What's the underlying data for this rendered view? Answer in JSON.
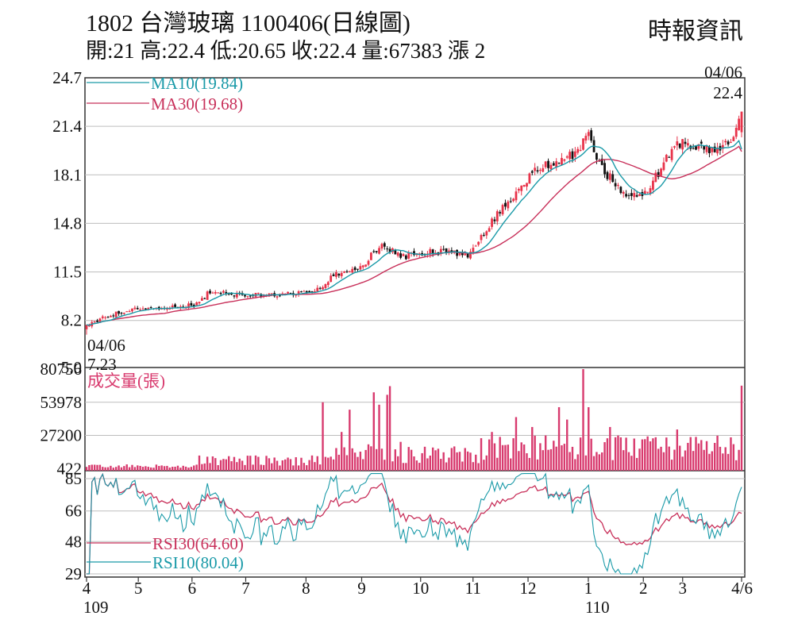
{
  "header": {
    "title": "1802  台灣玻璃 1100406(日線圖)",
    "stats": "開:21 高:22.4 低:20.65 收:22.4 量:67383 漲 2",
    "source": "時報資訊"
  },
  "colors": {
    "up": "#e8334a",
    "down": "#111111",
    "ma10": "#1a9aa8",
    "ma30": "#c8305a",
    "volume": "#d83a6e",
    "rsi10": "#1a9aa8",
    "rsi30": "#c8305a",
    "grid": "#bdbdbd",
    "frame": "#333333"
  },
  "chart_data": [
    {
      "type": "candlestick",
      "name": "price",
      "ylim": [
        5.0,
        24.7
      ],
      "y_ticks": [
        "24.7",
        "21.4",
        "18.1",
        "14.8",
        "11.5",
        "8.2",
        "5.0"
      ],
      "legend": [
        {
          "key": "ma10",
          "label": "MA10(19.84)"
        },
        {
          "key": "ma30",
          "label": "MA30(19.68)"
        }
      ],
      "annotations": {
        "high_date": "04/06",
        "high_value": "22.4",
        "low_date": "04/06",
        "low_value": "7.23"
      },
      "anchors": [
        {
          "t": 0.0,
          "c": 7.9
        },
        {
          "t": 0.03,
          "c": 8.5
        },
        {
          "t": 0.08,
          "c": 9.0
        },
        {
          "t": 0.12,
          "c": 9.0
        },
        {
          "t": 0.165,
          "c": 9.3
        },
        {
          "t": 0.19,
          "c": 10.2
        },
        {
          "t": 0.22,
          "c": 10.0
        },
        {
          "t": 0.28,
          "c": 9.9
        },
        {
          "t": 0.31,
          "c": 10.0
        },
        {
          "t": 0.345,
          "c": 10.1
        },
        {
          "t": 0.38,
          "c": 11.3
        },
        {
          "t": 0.42,
          "c": 11.9
        },
        {
          "t": 0.45,
          "c": 13.4
        },
        {
          "t": 0.48,
          "c": 12.5
        },
        {
          "t": 0.51,
          "c": 12.8
        },
        {
          "t": 0.55,
          "c": 12.9
        },
        {
          "t": 0.585,
          "c": 12.6
        },
        {
          "t": 0.62,
          "c": 15.0
        },
        {
          "t": 0.68,
          "c": 18.2
        },
        {
          "t": 0.72,
          "c": 19.2
        },
        {
          "t": 0.75,
          "c": 19.6
        },
        {
          "t": 0.765,
          "c": 20.9
        },
        {
          "t": 0.785,
          "c": 18.6
        },
        {
          "t": 0.83,
          "c": 16.4
        },
        {
          "t": 0.86,
          "c": 17.3
        },
        {
          "t": 0.9,
          "c": 20.3
        },
        {
          "t": 0.935,
          "c": 20.1
        },
        {
          "t": 0.96,
          "c": 19.6
        },
        {
          "t": 0.985,
          "c": 20.4
        },
        {
          "t": 1.0,
          "c": 22.4
        }
      ],
      "ma10_last": 19.84,
      "ma30_last": 19.68
    },
    {
      "type": "bar",
      "name": "volume",
      "title": "成交量(張)",
      "y_ticks": [
        "80756",
        "53978",
        "27200",
        "422"
      ],
      "ylim": [
        0,
        80756
      ],
      "spikes": [
        {
          "t": 0.36,
          "v": 54000
        },
        {
          "t": 0.39,
          "v": 30000
        },
        {
          "t": 0.4,
          "v": 48000
        },
        {
          "t": 0.43,
          "v": 20000
        },
        {
          "t": 0.44,
          "v": 62000
        },
        {
          "t": 0.445,
          "v": 52000
        },
        {
          "t": 0.46,
          "v": 60000
        },
        {
          "t": 0.464,
          "v": 67000
        },
        {
          "t": 0.48,
          "v": 22000
        },
        {
          "t": 0.62,
          "v": 30000
        },
        {
          "t": 0.655,
          "v": 42000
        },
        {
          "t": 0.68,
          "v": 34000
        },
        {
          "t": 0.72,
          "v": 50000
        },
        {
          "t": 0.735,
          "v": 40000
        },
        {
          "t": 0.76,
          "v": 80756
        },
        {
          "t": 0.765,
          "v": 50000
        },
        {
          "t": 0.8,
          "v": 34000
        },
        {
          "t": 0.85,
          "v": 24000
        },
        {
          "t": 0.9,
          "v": 32000
        },
        {
          "t": 0.93,
          "v": 26000
        },
        {
          "t": 1.0,
          "v": 67383
        }
      ]
    },
    {
      "type": "line",
      "name": "rsi",
      "y_ticks": [
        "85",
        "66",
        "48",
        "29"
      ],
      "ylim": [
        29,
        85
      ],
      "legend": [
        {
          "key": "rsi30",
          "label": "RSI30(64.60)"
        },
        {
          "key": "rsi10",
          "label": "RSI10(80.04)"
        }
      ],
      "rsi30_last": 64.6,
      "rsi10_last": 80.04
    }
  ],
  "x_axis": {
    "months": [
      {
        "label": "4",
        "t": 0.0
      },
      {
        "label": "5",
        "t": 0.079
      },
      {
        "label": "6",
        "t": 0.161
      },
      {
        "label": "7",
        "t": 0.243
      },
      {
        "label": "8",
        "t": 0.335
      },
      {
        "label": "9",
        "t": 0.42
      },
      {
        "label": "10",
        "t": 0.51
      },
      {
        "label": "11",
        "t": 0.59
      },
      {
        "label": "12",
        "t": 0.674
      },
      {
        "label": "1",
        "t": 0.766
      },
      {
        "label": "2",
        "t": 0.85
      },
      {
        "label": "3",
        "t": 0.91
      },
      {
        "label": "4/6",
        "t": 1.0
      }
    ],
    "year_labels": [
      {
        "label": "109",
        "t": 0.0
      },
      {
        "label": "110",
        "t": 0.766
      }
    ]
  }
}
